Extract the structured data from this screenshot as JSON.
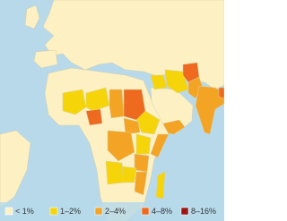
{
  "legend": {
    "items": [
      {
        "label": "< 1%",
        "color": "#fdf1c4"
      },
      {
        "label": "1–2%",
        "color": "#f5d50a"
      },
      {
        "label": "2–4%",
        "color": "#f4a424"
      },
      {
        "label": "4–8%",
        "color": "#ee6a1e"
      },
      {
        "label": "8–16%",
        "color": "#9e1414"
      }
    ]
  }
}
